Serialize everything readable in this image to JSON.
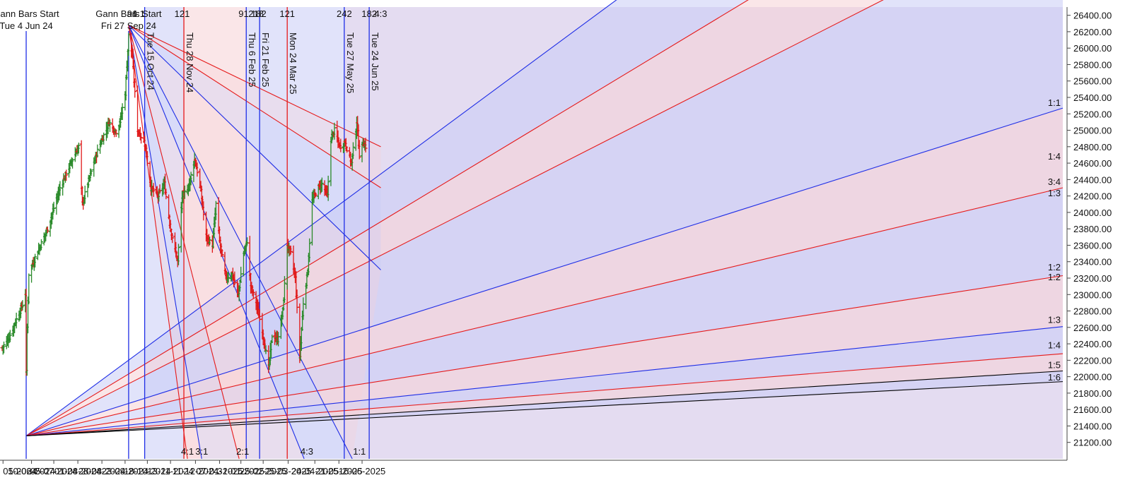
{
  "chart_data": {
    "type": "ohlc-bar-with-gann-overlays",
    "colors": {
      "up": "#2a8a2a",
      "down": "#e01818",
      "blue": "#1f2ee6",
      "red": "#e61a1a",
      "black": "#000000",
      "shade_blue": "#c9ccf5",
      "shade_red": "#f6d2d6",
      "shade_purple": "#cdbfe6"
    },
    "ylim": [
      21000,
      26500
    ],
    "y_ticks": [
      21200,
      21400,
      21600,
      21800,
      22000,
      22200,
      22400,
      22600,
      22800,
      23000,
      23200,
      23400,
      23600,
      23800,
      24000,
      24200,
      24400,
      24600,
      24800,
      25000,
      25200,
      25400,
      25600,
      25800,
      26000,
      26200,
      26400
    ],
    "y_tick_labels": [
      "21200.00",
      "21400.00",
      "21600.00",
      "21800.00",
      "22000.00",
      "22200.00",
      "22400.00",
      "22600.00",
      "22800.00",
      "23000.00",
      "23200.00",
      "23400.00",
      "23600.00",
      "23800.00",
      "24000.00",
      "24200.00",
      "24400.00",
      "24600.00",
      "24800.00",
      "25000.00",
      "25200.00",
      "25400.00",
      "25600.00",
      "25800.00",
      "26000.00",
      "26200.00",
      "26400.00"
    ],
    "x_first_bar": "2024-05-08",
    "x_ticks": [
      {
        "label": "05-2024",
        "date": "2024-05-09"
      },
      {
        "label": "10-06-2024",
        "date": "2024-06-10"
      },
      {
        "label": "05-07-2024",
        "date": "2024-07-05"
      },
      {
        "label": "01-08-2024",
        "date": "2024-08-01"
      },
      {
        "label": "28-08-2024",
        "date": "2024-08-28"
      },
      {
        "label": "23-09-2024",
        "date": "2024-09-23"
      },
      {
        "label": "18-10-2024",
        "date": "2024-10-18"
      },
      {
        "label": "13-11-2024",
        "date": "2024-11-13"
      },
      {
        "label": "11-12-2024",
        "date": "2024-12-11"
      },
      {
        "label": "07-01-2025",
        "date": "2025-01-07"
      },
      {
        "label": "31-01-2025",
        "date": "2025-01-31"
      },
      {
        "label": "25-02-2025",
        "date": "2025-02-25"
      },
      {
        "label": "25-03-2025",
        "date": "2025-03-25"
      },
      {
        "label": "24-04-2025",
        "date": "2025-04-24"
      },
      {
        "label": "21-05-2025",
        "date": "2025-05-21"
      },
      {
        "label": "16-06-2025",
        "date": "2025-06-16"
      }
    ],
    "gann_starts": [
      {
        "line1": "Gann Bars Start",
        "line2": "Tue 4 Jun 24",
        "date": "2024-06-04",
        "price": 21280
      },
      {
        "line1": "Gann Bars Start",
        "line2": "Fri 27 Sep 24",
        "date": "2024-09-27",
        "price": 26280
      }
    ],
    "vertical_lines": [
      {
        "label": "Tue 15 Oct 24",
        "date": "2024-10-15",
        "color": "blue"
      },
      {
        "label": "Thu 28 Nov 24",
        "date": "2024-11-28",
        "color": "red"
      },
      {
        "label": "Thu 6 Feb 25",
        "date": "2025-02-06",
        "color": "blue"
      },
      {
        "label": "Fri 21 Feb 25",
        "date": "2025-02-21",
        "color": "blue"
      },
      {
        "label": "Mon 24 Mar 25",
        "date": "2025-03-24",
        "color": "red"
      },
      {
        "label": "Tue 27 May 25",
        "date": "2025-05-27",
        "color": "blue"
      },
      {
        "label": "Tue 24 Jun 25",
        "date": "2025-06-24",
        "color": "blue"
      }
    ],
    "top_counts": [
      {
        "text": "94",
        "date": "2024-10-01"
      },
      {
        "text": "1:1",
        "date": "2024-10-08"
      },
      {
        "text": "121",
        "date": "2024-11-26"
      },
      {
        "text": "91",
        "date": "2025-02-03"
      },
      {
        "text": "218",
        "date": "2025-02-17"
      },
      {
        "text": "182",
        "date": "2025-02-20"
      },
      {
        "text": "121",
        "date": "2025-03-24"
      },
      {
        "text": "242",
        "date": "2025-05-27"
      },
      {
        "text": "182",
        "date": "2025-06-24"
      },
      {
        "text": "4:3",
        "date": "2025-07-07"
      }
    ],
    "bottom_ratios": [
      {
        "text": "4:1",
        "date": "2024-12-02"
      },
      {
        "text": "3:1",
        "date": "2024-12-18"
      },
      {
        "text": "2:1",
        "date": "2025-02-02"
      },
      {
        "text": "4:3",
        "date": "2025-04-15"
      },
      {
        "text": "1:1",
        "date": "2025-06-13"
      }
    ],
    "right_ratios": [
      {
        "text": "1:1",
        "price": 25330
      },
      {
        "text": "1:4",
        "price": 24680
      },
      {
        "text": "3:4",
        "price": 24370
      },
      {
        "text": "1:3",
        "price": 24230
      },
      {
        "text": "1:2",
        "price": 23330
      },
      {
        "text": "1:2",
        "price": 23210
      },
      {
        "text": "1:3",
        "price": 22690
      },
      {
        "text": "1:4",
        "price": 22380
      },
      {
        "text": "1:5",
        "price": 22140
      },
      {
        "text": "1:6",
        "price": 21990
      }
    ],
    "fan_from_june_end_prices": [
      {
        "price": 30600,
        "color": "blue"
      },
      {
        "price": 28900,
        "color": "red"
      },
      {
        "price": 27700,
        "color": "red"
      },
      {
        "price": 25270,
        "color": "blue"
      },
      {
        "price": 24300,
        "color": "red"
      },
      {
        "price": 23230,
        "color": "red"
      },
      {
        "price": 22610,
        "color": "blue"
      },
      {
        "price": 22280,
        "color": "red"
      },
      {
        "price": 22070,
        "color": "black"
      },
      {
        "price": 21940,
        "color": "black"
      }
    ],
    "fan_from_sep_targets": [
      {
        "date": "2025-07-07",
        "price": 24800,
        "color": "red"
      },
      {
        "date": "2025-07-07",
        "price": 24300,
        "color": "red"
      },
      {
        "date": "2025-07-07",
        "price": 23300,
        "color": "blue"
      },
      {
        "date": "2025-06-05",
        "price": 21000,
        "color": "blue"
      },
      {
        "date": "2025-04-12",
        "price": 21000,
        "color": "blue"
      },
      {
        "date": "2025-01-29",
        "price": 21000,
        "color": "red"
      },
      {
        "date": "2024-12-18",
        "price": 21000,
        "color": "blue"
      },
      {
        "date": "2024-12-02",
        "price": 21000,
        "color": "red"
      }
    ],
    "price_path": [
      [
        "2024-05-08",
        22350
      ],
      [
        "2024-05-16",
        22480
      ],
      [
        "2024-05-24",
        22700
      ],
      [
        "2024-06-01",
        22900
      ],
      [
        "2024-06-03",
        23000
      ],
      [
        "2024-06-04",
        22050
      ],
      [
        "2024-06-05",
        22600
      ],
      [
        "2024-06-07",
        23250
      ],
      [
        "2024-06-14",
        23450
      ],
      [
        "2024-06-28",
        23800
      ],
      [
        "2024-07-12",
        24300
      ],
      [
        "2024-07-26",
        24650
      ],
      [
        "2024-08-02",
        24800
      ],
      [
        "2024-08-06",
        24100
      ],
      [
        "2024-08-12",
        24350
      ],
      [
        "2024-08-23",
        24750
      ],
      [
        "2024-09-05",
        25100
      ],
      [
        "2024-09-11",
        25000
      ],
      [
        "2024-09-14",
        24980
      ],
      [
        "2024-09-18",
        25150
      ],
      [
        "2024-09-23",
        25450
      ],
      [
        "2024-09-27",
        26150
      ],
      [
        "2024-10-01",
        25900
      ],
      [
        "2024-10-07",
        25000
      ],
      [
        "2024-10-15",
        24850
      ],
      [
        "2024-10-22",
        24300
      ],
      [
        "2024-10-30",
        24200
      ],
      [
        "2024-11-06",
        24350
      ],
      [
        "2024-11-13",
        23800
      ],
      [
        "2024-11-21",
        23400
      ],
      [
        "2024-11-26",
        24200
      ],
      [
        "2024-12-03",
        24300
      ],
      [
        "2024-12-10",
        24650
      ],
      [
        "2024-12-13",
        24500
      ],
      [
        "2024-12-17",
        24250
      ],
      [
        "2024-12-23",
        23700
      ],
      [
        "2024-12-30",
        23600
      ],
      [
        "2025-01-03",
        24100
      ],
      [
        "2025-01-07",
        23650
      ],
      [
        "2025-01-14",
        23200
      ],
      [
        "2025-01-21",
        23250
      ],
      [
        "2025-01-28",
        23000
      ],
      [
        "2025-02-03",
        23500
      ],
      [
        "2025-02-07",
        23650
      ],
      [
        "2025-02-11",
        23100
      ],
      [
        "2025-02-17",
        22900
      ],
      [
        "2025-02-24",
        22550
      ],
      [
        "2025-03-03",
        22100
      ],
      [
        "2025-03-07",
        22500
      ],
      [
        "2025-03-13",
        22450
      ],
      [
        "2025-03-19",
        22800
      ],
      [
        "2025-03-24",
        23600
      ],
      [
        "2025-03-28",
        23500
      ],
      [
        "2025-04-02",
        23200
      ],
      [
        "2025-04-07",
        22250
      ],
      [
        "2025-04-11",
        22900
      ],
      [
        "2025-04-16",
        23300
      ],
      [
        "2025-04-21",
        24150
      ],
      [
        "2025-04-28",
        24300
      ],
      [
        "2025-05-02",
        24350
      ],
      [
        "2025-05-08",
        24200
      ],
      [
        "2025-05-12",
        24900
      ],
      [
        "2025-05-16",
        25000
      ],
      [
        "2025-05-22",
        24800
      ],
      [
        "2025-05-28",
        24850
      ],
      [
        "2025-06-04",
        24600
      ],
      [
        "2025-06-10",
        25100
      ],
      [
        "2025-06-13",
        24700
      ],
      [
        "2025-06-17",
        24850
      ],
      [
        "2025-06-20",
        24800
      ]
    ]
  }
}
